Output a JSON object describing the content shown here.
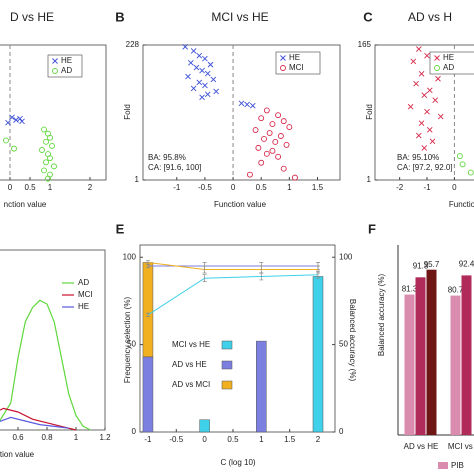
{
  "chart_data": [
    {
      "type": "scatter",
      "title": "D vs HE",
      "x_label": "nction value",
      "xlim": [
        -2,
        2.4
      ],
      "ylim": [
        1,
        100
      ],
      "xticks": [
        0,
        0.5,
        1,
        2
      ],
      "series": [
        {
          "name": "HE",
          "color": "#3b4fd8",
          "marker": "x",
          "x": [
            0.05,
            0.15,
            0.25,
            0.3,
            -0.05
          ],
          "values": [
            47,
            45,
            46,
            44,
            43
          ]
        },
        {
          "name": "AD",
          "color": "#5fd83b",
          "marker": "o",
          "x": [
            0.85,
            0.95,
            1.0,
            0.9,
            1.05,
            0.8,
            0.95,
            1.0,
            0.9,
            1.1,
            0.85,
            1.0,
            0.95,
            -0.1,
            0.1
          ],
          "values": [
            38,
            35,
            32,
            29,
            26,
            23,
            20,
            17,
            14,
            11,
            8,
            5,
            2,
            30,
            24
          ]
        }
      ]
    },
    {
      "type": "scatter",
      "label": "B",
      "title": "MCI vs HE",
      "x_label": "Function value",
      "y_label": "Fold",
      "xlim": [
        -1.6,
        1.9
      ],
      "ylim": [
        1,
        228
      ],
      "xticks": [
        -1,
        -0.5,
        0,
        0.5,
        1,
        1.5
      ],
      "yticks": [
        1,
        228
      ],
      "annotations": [
        "BA: 95.8%",
        "CA: [91.6, 100]"
      ],
      "series": [
        {
          "name": "HE",
          "color": "#3b4fd8",
          "marker": "x",
          "x": [
            -0.85,
            -0.7,
            -0.6,
            -0.5,
            -0.75,
            -0.4,
            -0.65,
            -0.55,
            -0.45,
            -0.8,
            -0.35,
            -0.6,
            -0.5,
            -0.7,
            -0.3,
            0.15,
            0.25,
            0.35,
            -0.55,
            -0.45
          ],
          "values": [
            225,
            218,
            210,
            205,
            198,
            195,
            190,
            185,
            180,
            175,
            170,
            165,
            160,
            155,
            150,
            130,
            128,
            126,
            140,
            145
          ]
        },
        {
          "name": "MCI",
          "color": "#d8284a",
          "marker": "o",
          "x": [
            0.6,
            0.8,
            0.5,
            0.9,
            0.7,
            1.0,
            0.4,
            0.65,
            0.85,
            0.55,
            0.75,
            0.95,
            0.45,
            0.7,
            0.6,
            0.8,
            0.5,
            0.9,
            0.3,
            1.1
          ],
          "values": [
            118,
            110,
            105,
            100,
            95,
            90,
            85,
            80,
            75,
            70,
            65,
            60,
            55,
            50,
            45,
            40,
            30,
            20,
            10,
            5
          ]
        }
      ]
    },
    {
      "type": "scatter",
      "label": "C",
      "title": "AD vs H",
      "x_label": "Functio",
      "y_label": "Fold",
      "xlim": [
        -2.9,
        1.3
      ],
      "ylim": [
        1,
        165
      ],
      "xticks": [
        -2,
        -1,
        0
      ],
      "yticks": [
        1,
        165
      ],
      "annotations": [
        "BA: 95.10%",
        "CA: [97.2, 92.0]"
      ],
      "series": [
        {
          "name": "HE",
          "color": "#d8284a",
          "marker": "x",
          "x": [
            -1.3,
            -1.0,
            -1.5,
            -0.8,
            -1.2,
            -0.6,
            -1.4,
            -0.9,
            -1.1,
            -0.7,
            -1.6,
            -1.0,
            -0.5,
            -1.2,
            -0.9,
            -1.3,
            -0.8,
            -1.1
          ],
          "values": [
            160,
            152,
            145,
            138,
            130,
            124,
            118,
            110,
            104,
            98,
            90,
            84,
            78,
            70,
            62,
            55,
            48,
            40
          ]
        },
        {
          "name": "AD",
          "color": "#5fd83b",
          "marker": "o",
          "x": [
            0.3,
            0.6,
            0.2
          ],
          "values": [
            20,
            10,
            30
          ]
        }
      ]
    },
    {
      "type": "line",
      "x_label": "ction value",
      "xlim": [
        0.2,
        1.2
      ],
      "ylim": [
        0,
        1
      ],
      "xticks": [
        0.6,
        0.8,
        1,
        1.2
      ],
      "series": [
        {
          "name": "AD",
          "color": "#5fd83b",
          "x": [
            0.45,
            0.55,
            0.6,
            0.65,
            0.7,
            0.75,
            0.8,
            0.85,
            0.9,
            0.95,
            1.0,
            1.05,
            1.1
          ],
          "values": [
            0.02,
            0.15,
            0.4,
            0.6,
            0.68,
            0.72,
            0.7,
            0.6,
            0.4,
            0.2,
            0.08,
            0.02,
            0
          ]
        },
        {
          "name": "MCI",
          "color": "#c8102e",
          "x": [
            0.3,
            0.4,
            0.5,
            0.6,
            0.7,
            0.8,
            0.9,
            1.0
          ],
          "values": [
            0.05,
            0.08,
            0.12,
            0.1,
            0.06,
            0.04,
            0.02,
            0
          ]
        },
        {
          "name": "HE",
          "color": "#5a5ae0",
          "x": [
            0.3,
            0.45,
            0.55,
            0.65,
            0.75,
            0.85,
            0.95
          ],
          "values": [
            0.02,
            0.04,
            0.07,
            0.05,
            0.03,
            0.02,
            0.01
          ]
        }
      ]
    },
    {
      "type": "bar",
      "label": "E",
      "x_label": "C (log 10)",
      "y_label": "Frequency selection (%)",
      "y2_label": "Balanced accuracy (%)",
      "x": [
        -1,
        0,
        1,
        2
      ],
      "xlim": [
        -1.14,
        2.3
      ],
      "xticks": [
        -1,
        -0.5,
        0,
        0.5,
        1,
        1.5,
        2
      ],
      "ylim": [
        0,
        107
      ],
      "yticks": [
        0,
        50,
        100
      ],
      "y2lim": [
        0,
        107
      ],
      "y2ticks": [
        0,
        50,
        100
      ],
      "series": [
        {
          "name": "MCI vs HE",
          "color": "#3fd0ea",
          "values": [
            null,
            7,
            null,
            89
          ]
        },
        {
          "name": "AD vs HE",
          "color": "#7b7fe0",
          "values": [
            43,
            null,
            52,
            null
          ]
        },
        {
          "name": "AD vs MCI",
          "color": "#f0b020",
          "values": [
            54,
            null,
            null,
            null
          ]
        }
      ],
      "lines": [
        {
          "color": "#3fd0ea",
          "axis": "y2",
          "values": [
            67,
            88,
            89,
            90
          ],
          "errors": [
            1,
            2,
            2,
            2
          ]
        },
        {
          "color": "#7b7fe0",
          "axis": "y2",
          "values": [
            95,
            95,
            95,
            95
          ],
          "errors": [
            1,
            2,
            2,
            2
          ]
        },
        {
          "color": "#f0b020",
          "axis": "y2",
          "values": [
            97,
            93,
            93,
            93
          ],
          "errors": [
            1,
            2,
            2,
            2
          ]
        }
      ]
    },
    {
      "type": "grouped_bar",
      "label": "F",
      "y_label": "Balanced accuracy (%)",
      "categories": [
        "AD vs HE",
        "MCI vs HE"
      ],
      "ylim": [
        0,
        110
      ],
      "series": [
        {
          "name": "PIB",
          "color": "#d98cae",
          "values": [
            81.3,
            80.7
          ]
        },
        {
          "color": "#b02a5a",
          "values": [
            91.3,
            92.4
          ]
        },
        {
          "color": "#6e1616",
          "values": [
            95.7,
            null
          ]
        }
      ]
    }
  ]
}
